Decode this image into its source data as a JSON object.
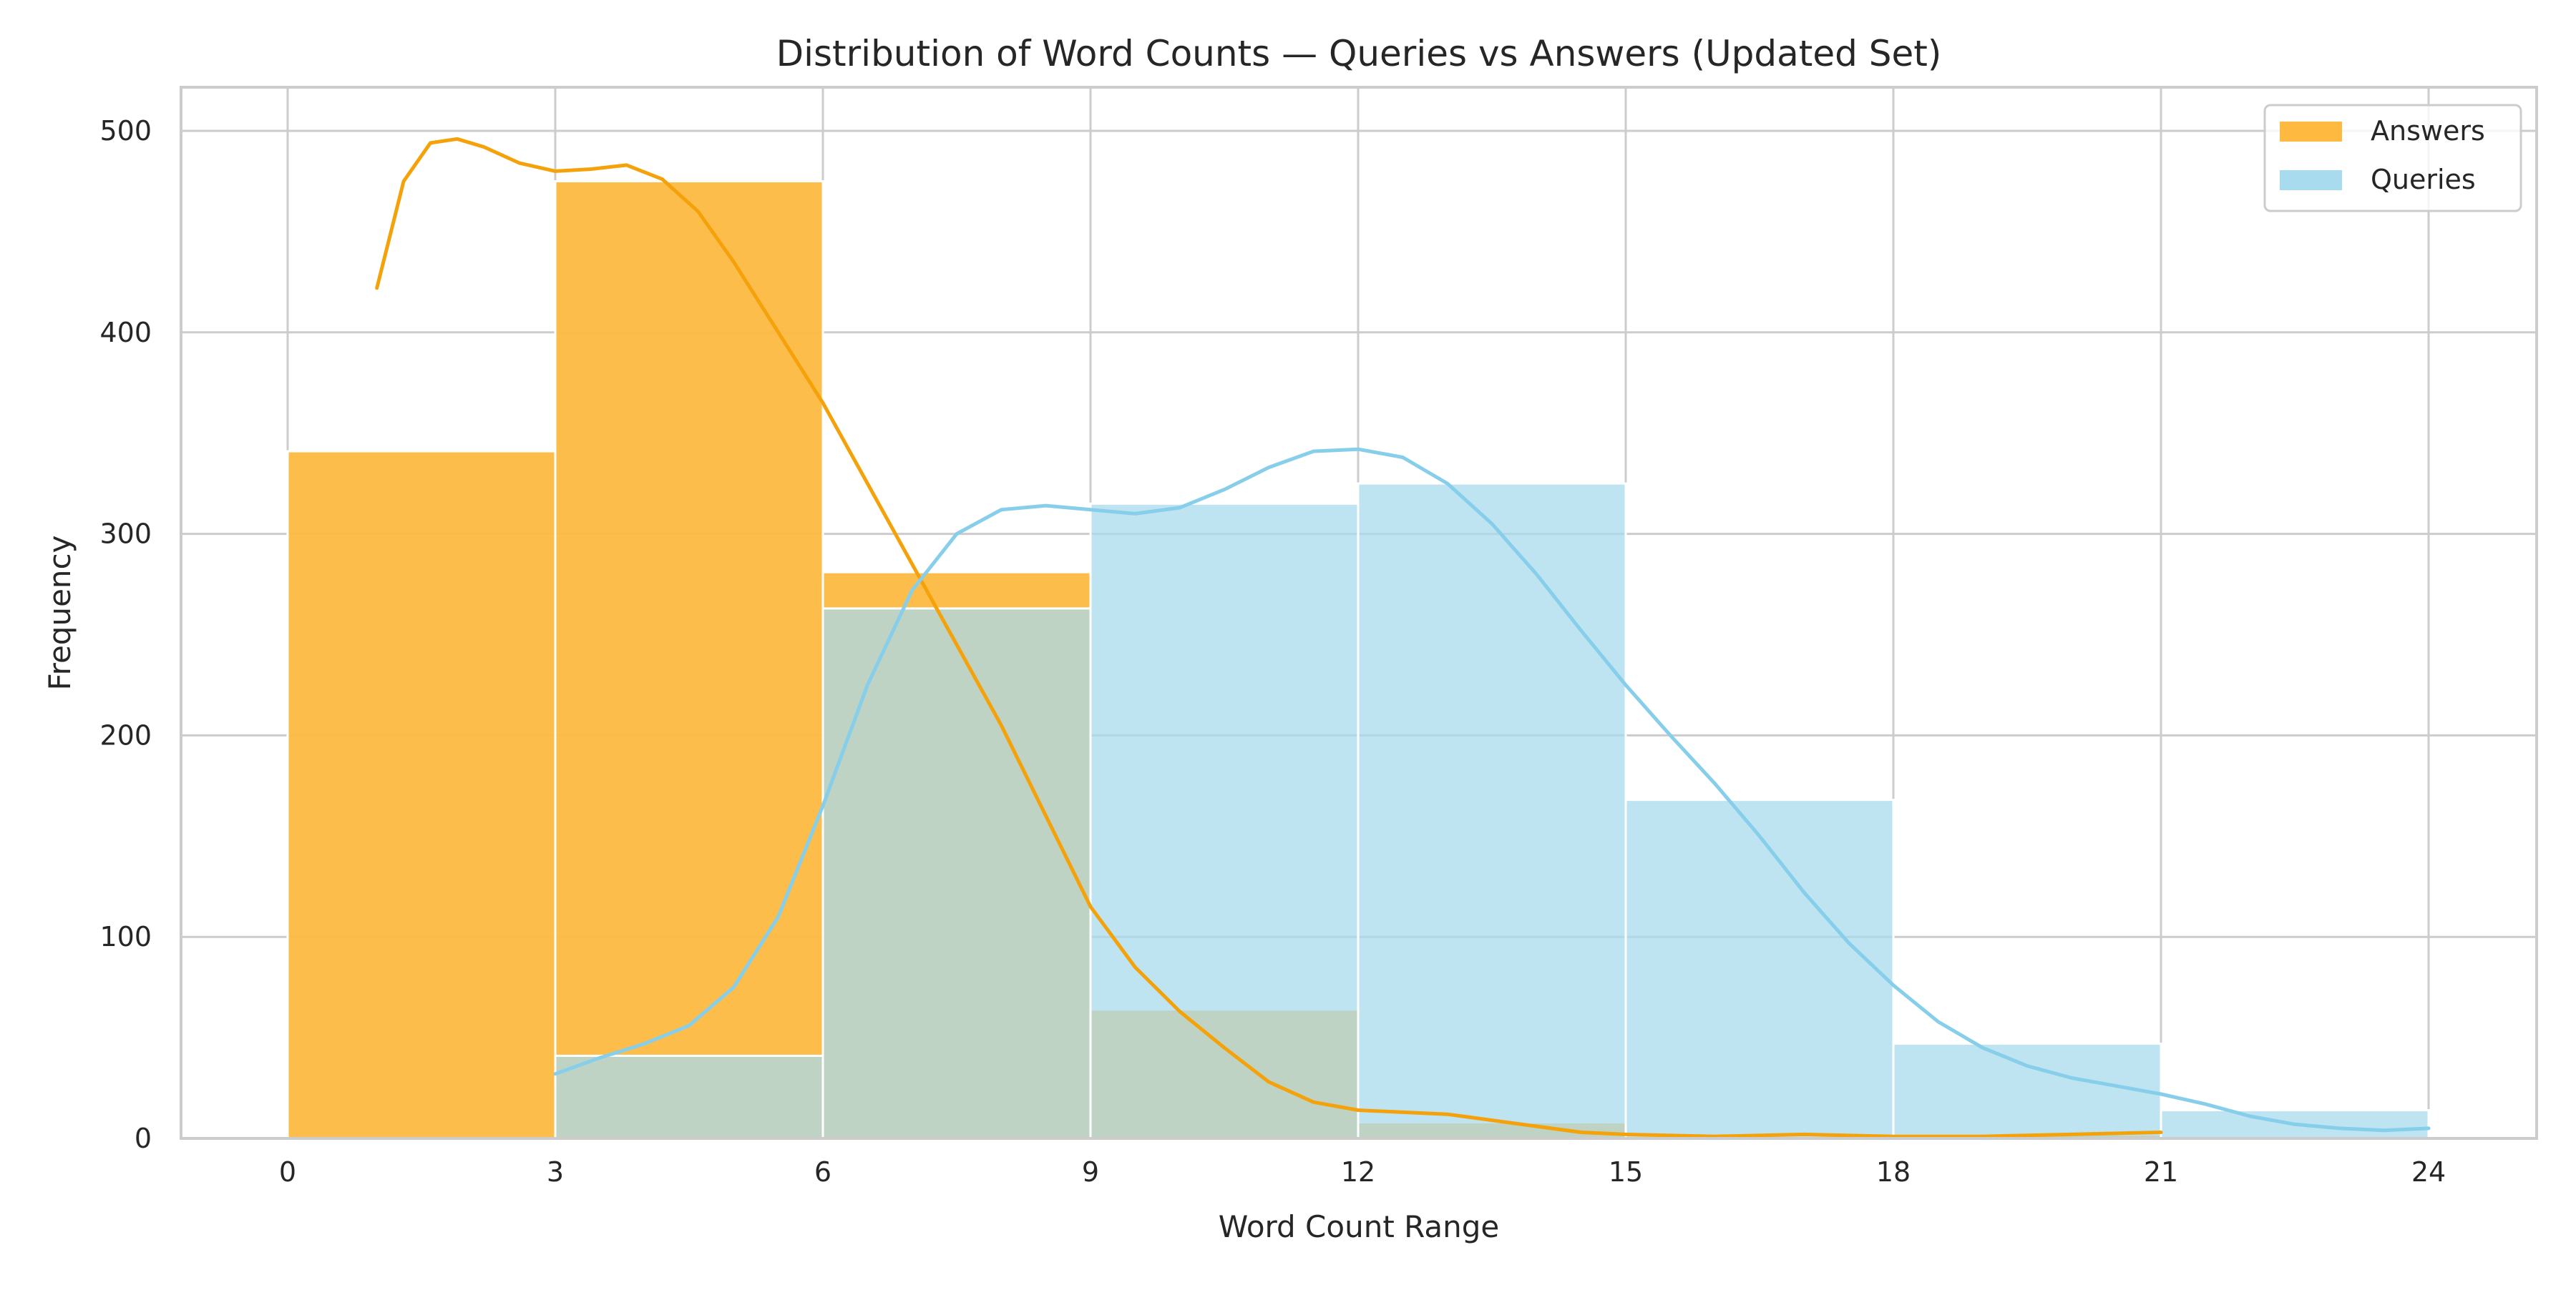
{
  "chart_data": {
    "type": "bar",
    "title": "Distribution of Word Counts — Queries vs Answers (Updated Set)",
    "xlabel": "Word Count Range",
    "ylabel": "Frequency",
    "xlim": [
      -1.5,
      25.5
    ],
    "ylim": [
      0,
      520
    ],
    "grid": true,
    "legend_position": "top-right",
    "bin_edges": [
      0,
      3,
      6,
      9,
      12,
      15,
      18,
      21,
      24
    ],
    "x_ticks": [
      0,
      3,
      6,
      9,
      12,
      15,
      18,
      21,
      24
    ],
    "y_ticks": [
      0,
      100,
      200,
      300,
      400,
      500
    ],
    "series": [
      {
        "name": "Answers",
        "color": "#fdb940",
        "line_color": "#f5a20a",
        "values": [
          341,
          475,
          281,
          64,
          8,
          0,
          2,
          0
        ],
        "kde": {
          "x": [
            1,
            1.3,
            1.6,
            1.9,
            2.2,
            2.6,
            3,
            3.4,
            3.8,
            4.2,
            4.6,
            5,
            5.5,
            6,
            6.5,
            7,
            7.5,
            8,
            8.5,
            9,
            9.5,
            10,
            10.5,
            11,
            11.5,
            12,
            12.5,
            13,
            13.5,
            14,
            14.5,
            15,
            16,
            17,
            18,
            19,
            20,
            21
          ],
          "y": [
            422,
            475,
            494,
            496,
            492,
            484,
            480,
            481,
            483,
            476,
            460,
            435,
            400,
            365,
            325,
            285,
            245,
            205,
            160,
            115,
            85,
            63,
            45,
            28,
            18,
            14,
            13,
            12,
            9,
            6,
            3,
            2,
            1,
            2,
            1,
            1,
            2,
            3
          ]
        }
      },
      {
        "name": "Queries",
        "color": "#a8dbee",
        "line_color": "#87ceeb",
        "values": [
          0,
          41,
          263,
          315,
          325,
          168,
          47,
          14
        ],
        "kde": {
          "x": [
            3,
            3.5,
            4,
            4.5,
            5,
            5.5,
            6,
            6.5,
            7,
            7.5,
            8,
            8.5,
            9,
            9.5,
            10,
            10.5,
            11,
            11.5,
            12,
            12.5,
            13,
            13.5,
            14,
            14.5,
            15,
            15.5,
            16,
            16.5,
            17,
            17.5,
            18,
            18.5,
            19,
            19.5,
            20,
            20.5,
            21,
            21.5,
            22,
            22.5,
            23,
            23.5,
            24
          ],
          "y": [
            32,
            40,
            47,
            56,
            75,
            110,
            165,
            225,
            272,
            300,
            312,
            314,
            312,
            310,
            313,
            322,
            333,
            341,
            342,
            338,
            325,
            305,
            280,
            252,
            225,
            200,
            176,
            150,
            122,
            97,
            76,
            58,
            45,
            36,
            30,
            26,
            22,
            17,
            11,
            7,
            5,
            4,
            5
          ]
        }
      }
    ]
  }
}
